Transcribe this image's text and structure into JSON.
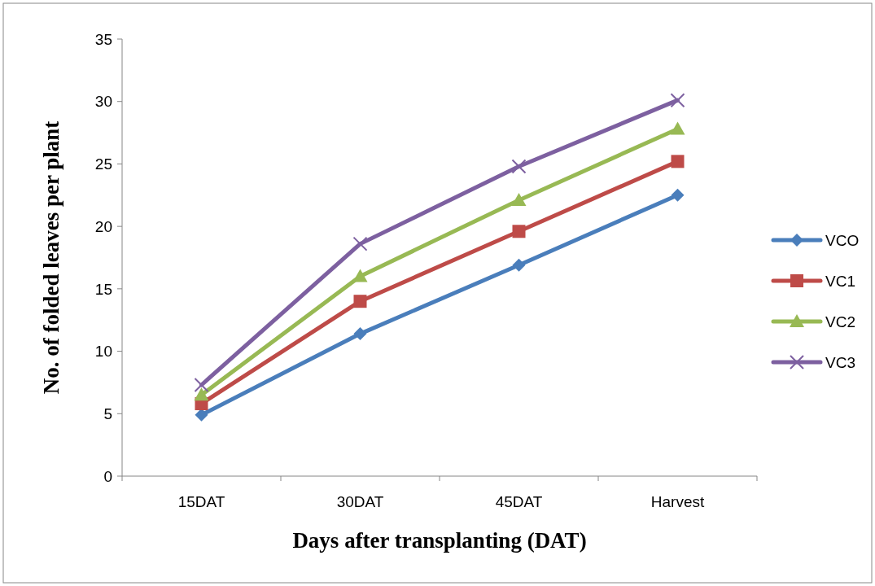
{
  "chart_data": {
    "type": "line",
    "xlabel": "Days after transplanting (DAT)",
    "ylabel": "No. of folded leaves per plant",
    "categories": [
      "15DAT",
      "30DAT",
      "45DAT",
      "Harvest"
    ],
    "ylim": [
      0,
      35
    ],
    "yticks": [
      0,
      5,
      10,
      15,
      20,
      25,
      30,
      35
    ],
    "legend": "right",
    "grid": false,
    "series": [
      {
        "name": "VCO",
        "color": "#4a7ebb",
        "marker": "diamond",
        "values": [
          4.9,
          11.4,
          16.9,
          22.5
        ]
      },
      {
        "name": "VC1",
        "color": "#be4b48",
        "marker": "square",
        "values": [
          5.8,
          14.0,
          19.6,
          25.2
        ]
      },
      {
        "name": "VC2",
        "color": "#98b954",
        "marker": "triangle",
        "values": [
          6.5,
          16.0,
          22.1,
          27.8
        ]
      },
      {
        "name": "VC3",
        "color": "#7d60a0",
        "marker": "cross",
        "values": [
          7.3,
          18.6,
          24.8,
          30.1
        ]
      }
    ]
  }
}
